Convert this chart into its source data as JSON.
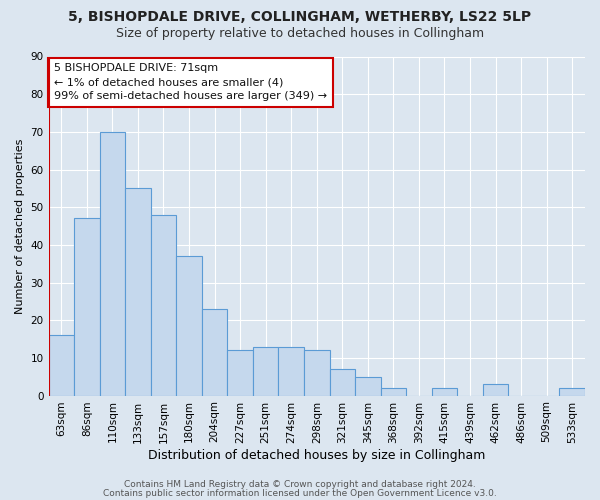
{
  "title": "5, BISHOPDALE DRIVE, COLLINGHAM, WETHERBY, LS22 5LP",
  "subtitle": "Size of property relative to detached houses in Collingham",
  "xlabel": "Distribution of detached houses by size in Collingham",
  "ylabel": "Number of detached properties",
  "categories": [
    "63sqm",
    "86sqm",
    "110sqm",
    "133sqm",
    "157sqm",
    "180sqm",
    "204sqm",
    "227sqm",
    "251sqm",
    "274sqm",
    "298sqm",
    "321sqm",
    "345sqm",
    "368sqm",
    "392sqm",
    "415sqm",
    "439sqm",
    "462sqm",
    "486sqm",
    "509sqm",
    "533sqm"
  ],
  "values": [
    16,
    47,
    70,
    55,
    48,
    37,
    23,
    12,
    13,
    13,
    12,
    7,
    5,
    2,
    0,
    2,
    0,
    3,
    0,
    0,
    2
  ],
  "bar_color": "#c5d8ed",
  "bar_edge_color": "#5b9bd5",
  "ylim": [
    0,
    90
  ],
  "yticks": [
    0,
    10,
    20,
    30,
    40,
    50,
    60,
    70,
    80,
    90
  ],
  "annotation_box_text": "5 BISHOPDALE DRIVE: 71sqm\n← 1% of detached houses are smaller (4)\n99% of semi-detached houses are larger (349) →",
  "red_line_x": -0.5,
  "footer_line1": "Contains HM Land Registry data © Crown copyright and database right 2024.",
  "footer_line2": "Contains public sector information licensed under the Open Government Licence v3.0.",
  "background_color": "#dce6f0",
  "plot_bg_color": "#dce6f0",
  "title_fontsize": 10,
  "subtitle_fontsize": 9,
  "xlabel_fontsize": 9,
  "ylabel_fontsize": 8,
  "tick_fontsize": 7.5,
  "footer_fontsize": 6.5,
  "annotation_fontsize": 8
}
